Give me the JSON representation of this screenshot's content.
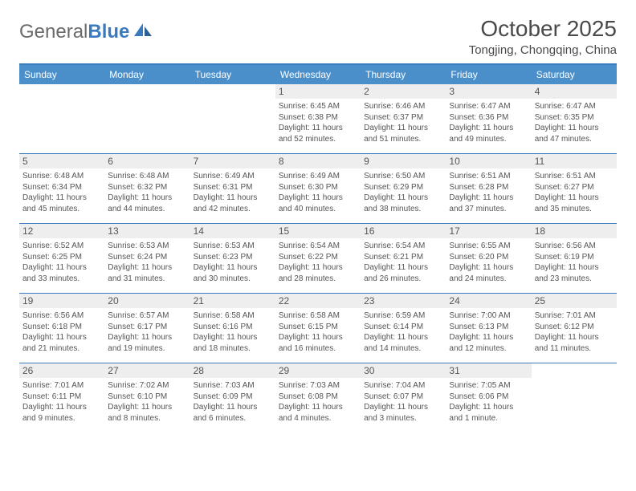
{
  "logo": {
    "text1": "General",
    "text2": "Blue"
  },
  "title": "October 2025",
  "location": "Tongjing, Chongqing, China",
  "colors": {
    "header_bg": "#4a8fca",
    "border": "#3a7bbf",
    "daynum_bg": "#eeeeee",
    "text": "#555555",
    "title": "#4a4a4a"
  },
  "day_names": [
    "Sunday",
    "Monday",
    "Tuesday",
    "Wednesday",
    "Thursday",
    "Friday",
    "Saturday"
  ],
  "weeks": [
    [
      {
        "n": "",
        "empty": true
      },
      {
        "n": "",
        "empty": true
      },
      {
        "n": "",
        "empty": true
      },
      {
        "n": "1",
        "sr": "Sunrise: 6:45 AM",
        "ss": "Sunset: 6:38 PM",
        "dl1": "Daylight: 11 hours",
        "dl2": "and 52 minutes."
      },
      {
        "n": "2",
        "sr": "Sunrise: 6:46 AM",
        "ss": "Sunset: 6:37 PM",
        "dl1": "Daylight: 11 hours",
        "dl2": "and 51 minutes."
      },
      {
        "n": "3",
        "sr": "Sunrise: 6:47 AM",
        "ss": "Sunset: 6:36 PM",
        "dl1": "Daylight: 11 hours",
        "dl2": "and 49 minutes."
      },
      {
        "n": "4",
        "sr": "Sunrise: 6:47 AM",
        "ss": "Sunset: 6:35 PM",
        "dl1": "Daylight: 11 hours",
        "dl2": "and 47 minutes."
      }
    ],
    [
      {
        "n": "5",
        "sr": "Sunrise: 6:48 AM",
        "ss": "Sunset: 6:34 PM",
        "dl1": "Daylight: 11 hours",
        "dl2": "and 45 minutes."
      },
      {
        "n": "6",
        "sr": "Sunrise: 6:48 AM",
        "ss": "Sunset: 6:32 PM",
        "dl1": "Daylight: 11 hours",
        "dl2": "and 44 minutes."
      },
      {
        "n": "7",
        "sr": "Sunrise: 6:49 AM",
        "ss": "Sunset: 6:31 PM",
        "dl1": "Daylight: 11 hours",
        "dl2": "and 42 minutes."
      },
      {
        "n": "8",
        "sr": "Sunrise: 6:49 AM",
        "ss": "Sunset: 6:30 PM",
        "dl1": "Daylight: 11 hours",
        "dl2": "and 40 minutes."
      },
      {
        "n": "9",
        "sr": "Sunrise: 6:50 AM",
        "ss": "Sunset: 6:29 PM",
        "dl1": "Daylight: 11 hours",
        "dl2": "and 38 minutes."
      },
      {
        "n": "10",
        "sr": "Sunrise: 6:51 AM",
        "ss": "Sunset: 6:28 PM",
        "dl1": "Daylight: 11 hours",
        "dl2": "and 37 minutes."
      },
      {
        "n": "11",
        "sr": "Sunrise: 6:51 AM",
        "ss": "Sunset: 6:27 PM",
        "dl1": "Daylight: 11 hours",
        "dl2": "and 35 minutes."
      }
    ],
    [
      {
        "n": "12",
        "sr": "Sunrise: 6:52 AM",
        "ss": "Sunset: 6:25 PM",
        "dl1": "Daylight: 11 hours",
        "dl2": "and 33 minutes."
      },
      {
        "n": "13",
        "sr": "Sunrise: 6:53 AM",
        "ss": "Sunset: 6:24 PM",
        "dl1": "Daylight: 11 hours",
        "dl2": "and 31 minutes."
      },
      {
        "n": "14",
        "sr": "Sunrise: 6:53 AM",
        "ss": "Sunset: 6:23 PM",
        "dl1": "Daylight: 11 hours",
        "dl2": "and 30 minutes."
      },
      {
        "n": "15",
        "sr": "Sunrise: 6:54 AM",
        "ss": "Sunset: 6:22 PM",
        "dl1": "Daylight: 11 hours",
        "dl2": "and 28 minutes."
      },
      {
        "n": "16",
        "sr": "Sunrise: 6:54 AM",
        "ss": "Sunset: 6:21 PM",
        "dl1": "Daylight: 11 hours",
        "dl2": "and 26 minutes."
      },
      {
        "n": "17",
        "sr": "Sunrise: 6:55 AM",
        "ss": "Sunset: 6:20 PM",
        "dl1": "Daylight: 11 hours",
        "dl2": "and 24 minutes."
      },
      {
        "n": "18",
        "sr": "Sunrise: 6:56 AM",
        "ss": "Sunset: 6:19 PM",
        "dl1": "Daylight: 11 hours",
        "dl2": "and 23 minutes."
      }
    ],
    [
      {
        "n": "19",
        "sr": "Sunrise: 6:56 AM",
        "ss": "Sunset: 6:18 PM",
        "dl1": "Daylight: 11 hours",
        "dl2": "and 21 minutes."
      },
      {
        "n": "20",
        "sr": "Sunrise: 6:57 AM",
        "ss": "Sunset: 6:17 PM",
        "dl1": "Daylight: 11 hours",
        "dl2": "and 19 minutes."
      },
      {
        "n": "21",
        "sr": "Sunrise: 6:58 AM",
        "ss": "Sunset: 6:16 PM",
        "dl1": "Daylight: 11 hours",
        "dl2": "and 18 minutes."
      },
      {
        "n": "22",
        "sr": "Sunrise: 6:58 AM",
        "ss": "Sunset: 6:15 PM",
        "dl1": "Daylight: 11 hours",
        "dl2": "and 16 minutes."
      },
      {
        "n": "23",
        "sr": "Sunrise: 6:59 AM",
        "ss": "Sunset: 6:14 PM",
        "dl1": "Daylight: 11 hours",
        "dl2": "and 14 minutes."
      },
      {
        "n": "24",
        "sr": "Sunrise: 7:00 AM",
        "ss": "Sunset: 6:13 PM",
        "dl1": "Daylight: 11 hours",
        "dl2": "and 12 minutes."
      },
      {
        "n": "25",
        "sr": "Sunrise: 7:01 AM",
        "ss": "Sunset: 6:12 PM",
        "dl1": "Daylight: 11 hours",
        "dl2": "and 11 minutes."
      }
    ],
    [
      {
        "n": "26",
        "sr": "Sunrise: 7:01 AM",
        "ss": "Sunset: 6:11 PM",
        "dl1": "Daylight: 11 hours",
        "dl2": "and 9 minutes."
      },
      {
        "n": "27",
        "sr": "Sunrise: 7:02 AM",
        "ss": "Sunset: 6:10 PM",
        "dl1": "Daylight: 11 hours",
        "dl2": "and 8 minutes."
      },
      {
        "n": "28",
        "sr": "Sunrise: 7:03 AM",
        "ss": "Sunset: 6:09 PM",
        "dl1": "Daylight: 11 hours",
        "dl2": "and 6 minutes."
      },
      {
        "n": "29",
        "sr": "Sunrise: 7:03 AM",
        "ss": "Sunset: 6:08 PM",
        "dl1": "Daylight: 11 hours",
        "dl2": "and 4 minutes."
      },
      {
        "n": "30",
        "sr": "Sunrise: 7:04 AM",
        "ss": "Sunset: 6:07 PM",
        "dl1": "Daylight: 11 hours",
        "dl2": "and 3 minutes."
      },
      {
        "n": "31",
        "sr": "Sunrise: 7:05 AM",
        "ss": "Sunset: 6:06 PM",
        "dl1": "Daylight: 11 hours",
        "dl2": "and 1 minute."
      },
      {
        "n": "",
        "empty": true
      }
    ]
  ]
}
